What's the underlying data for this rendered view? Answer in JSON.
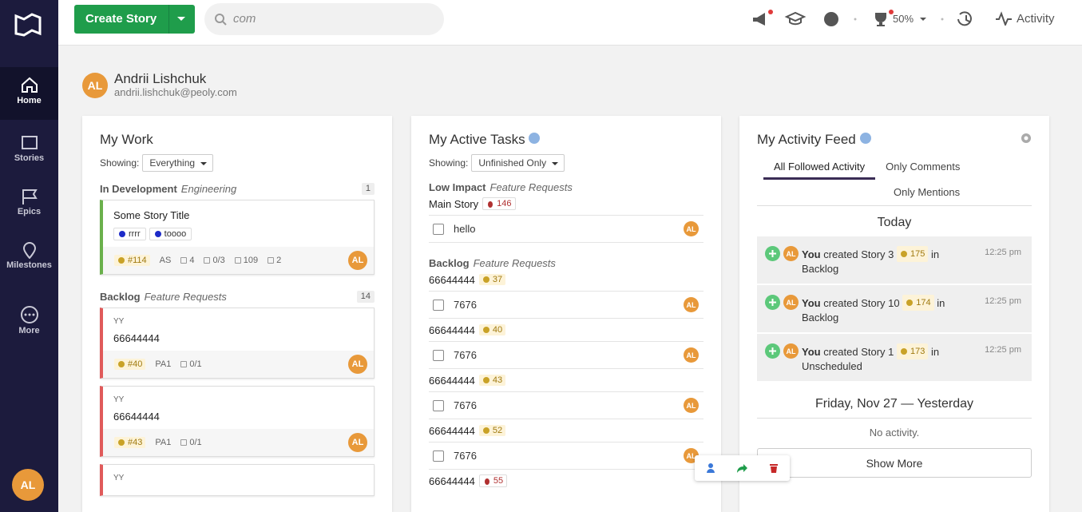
{
  "sidebar": {
    "nav": [
      "Home",
      "Stories",
      "Epics",
      "Milestones",
      "More"
    ],
    "user_initials": "AL"
  },
  "topbar": {
    "create_button": "Create Story",
    "search_query": "com",
    "progress": "50%",
    "activity": "Activity"
  },
  "profile": {
    "initials": "AL",
    "name": "Andrii Lishchuk",
    "email": "andrii.lishchuk@peoly.com"
  },
  "my_work": {
    "title": "My Work",
    "showing_label": "Showing:",
    "filter": "Everything",
    "groups": [
      {
        "name": "In Development",
        "project": "Engineering",
        "count": 1,
        "cards": [
          {
            "title": "Some Story Title",
            "labels": [
              "rrrr",
              "toooo"
            ],
            "id": "#114",
            "owner": "AS",
            "points": 4,
            "tasks": "0/3",
            "time": 109,
            "links": 2,
            "avatar": "AL"
          }
        ]
      },
      {
        "name": "Backlog",
        "project": "Feature Requests",
        "count": 14,
        "cards": [
          {
            "tag": "YY",
            "title": "66644444",
            "id": "#40",
            "owner": "PA1",
            "tasks": "0/1",
            "avatar": "AL"
          },
          {
            "tag": "YY",
            "title": "66644444",
            "id": "#43",
            "owner": "PA1",
            "tasks": "0/1",
            "avatar": "AL"
          },
          {
            "tag": "YY"
          }
        ]
      }
    ]
  },
  "active_tasks": {
    "title": "My Active Tasks",
    "showing_label": "Showing:",
    "filter": "Unfinished Only",
    "groups": [
      {
        "name": "Low Impact",
        "project": "Feature Requests",
        "stories": [
          {
            "title": "Main Story",
            "id": 146,
            "kind": "bug",
            "tasks": [
              {
                "text": "hello",
                "avatar": "AL"
              }
            ]
          }
        ]
      },
      {
        "name": "Backlog",
        "project": "Feature Requests",
        "stories": [
          {
            "title": "66644444",
            "id": 37,
            "kind": "feature",
            "tasks": [
              {
                "text": "7676",
                "avatar": "AL"
              }
            ]
          },
          {
            "title": "66644444",
            "id": 40,
            "kind": "feature",
            "tasks": [
              {
                "text": "7676",
                "avatar": "AL"
              }
            ]
          },
          {
            "title": "66644444",
            "id": 43,
            "kind": "feature",
            "tasks": [
              {
                "text": "7676",
                "avatar": "AL"
              }
            ]
          },
          {
            "title": "66644444",
            "id": 52,
            "kind": "feature",
            "tasks": [
              {
                "text": "7676",
                "avatar": "AL"
              }
            ]
          },
          {
            "title": "66644444",
            "id": 55,
            "kind": "bug",
            "tasks": []
          }
        ]
      }
    ]
  },
  "activity_feed": {
    "title": "My Activity Feed",
    "tabs": [
      "All Followed Activity",
      "Only Comments",
      "Only Mentions"
    ],
    "today": {
      "label": "Today",
      "entries": [
        {
          "avatar": "AL",
          "actor": "You",
          "verb": "created",
          "story": "Story 3",
          "id": 175,
          "preposition": "in",
          "location": "Backlog",
          "time": "12:25 pm"
        },
        {
          "avatar": "AL",
          "actor": "You",
          "verb": "created",
          "story": "Story 10",
          "id": 174,
          "preposition": "in",
          "location": "Backlog",
          "time": "12:25 pm"
        },
        {
          "avatar": "AL",
          "actor": "You",
          "verb": "created",
          "story": "Story 1",
          "id": 173,
          "preposition": "in",
          "location": "Unscheduled",
          "time": "12:25 pm"
        }
      ]
    },
    "yesterday": {
      "date": "Friday, Nov 27",
      "separator": "—",
      "relative": "Yesterday",
      "empty": "No activity."
    },
    "show_more": "Show More"
  }
}
